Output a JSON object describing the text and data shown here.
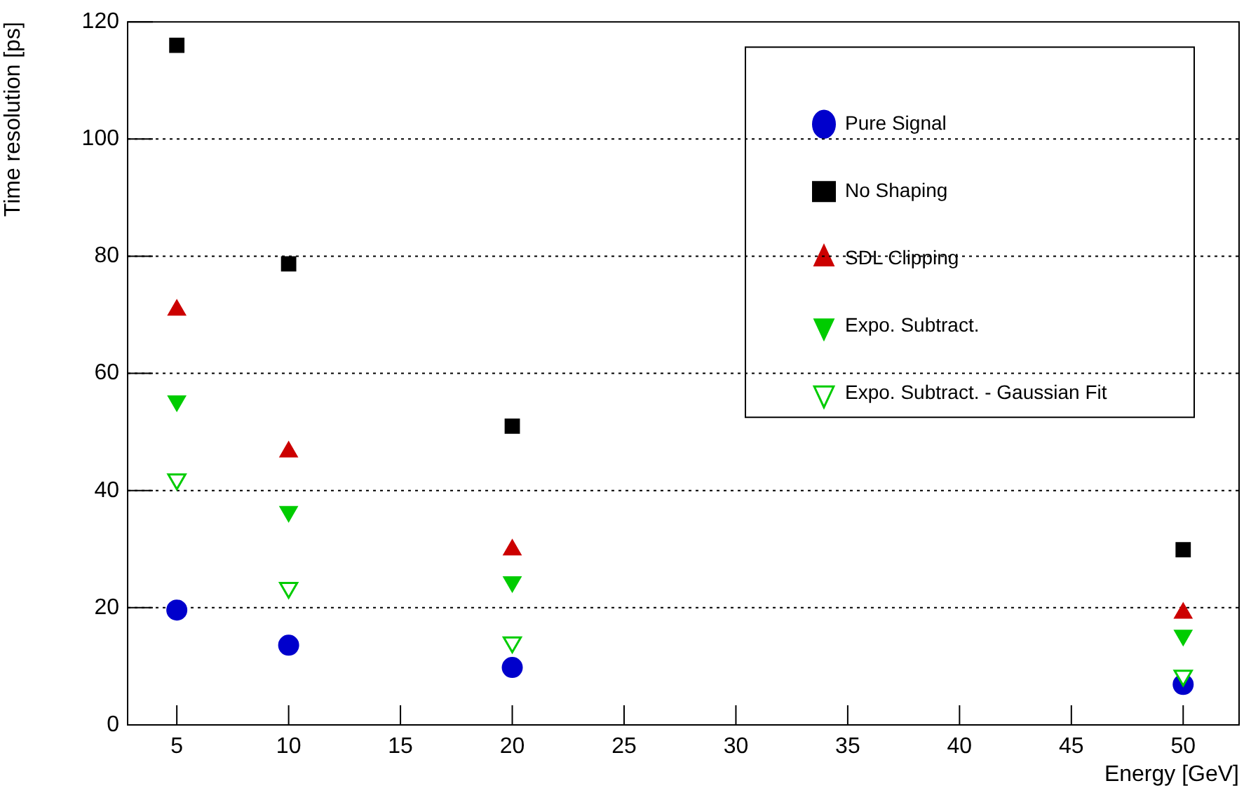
{
  "chart_data": {
    "type": "scatter",
    "xlabel": "Energy [GeV]",
    "ylabel": "Time resolution [ps]",
    "xlim": [
      2.8,
      52.5
    ],
    "xticks": [
      5,
      10,
      15,
      20,
      25,
      30,
      35,
      40,
      45,
      50
    ],
    "ylim": [
      0,
      120
    ],
    "yticks": [
      0,
      20,
      40,
      60,
      80,
      100,
      120
    ],
    "grid": "y",
    "legend": "top right",
    "x": [
      5,
      10,
      20,
      50
    ],
    "series": [
      {
        "name": "Pure Signal",
        "color": "#0000cc",
        "marker": "circle",
        "values": [
          19.6,
          13.6,
          9.8,
          6.9
        ]
      },
      {
        "name": "No Shaping",
        "color": "#000000",
        "marker": "square",
        "values": [
          116,
          78.7,
          51,
          29.9
        ]
      },
      {
        "name": "SDL Clipping",
        "color": "#cc0000",
        "marker": "triangle",
        "values": [
          70.8,
          46.6,
          29.9,
          19.1
        ]
      },
      {
        "name": "Expo. Subtract.",
        "color": "#00cc00",
        "marker": "triangle-down",
        "values": [
          55.3,
          36.4,
          24.4,
          15.3
        ]
      },
      {
        "name": "Expo. Subtract. - Gaussian Fit",
        "color": "#00cc00",
        "marker": "triangle-down-open",
        "values": [
          41.9,
          23.4,
          14.1,
          8.4
        ]
      }
    ]
  }
}
